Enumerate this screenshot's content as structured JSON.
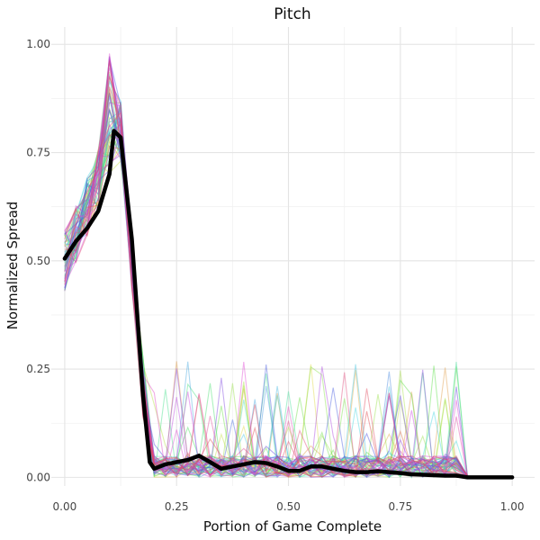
{
  "chart_data": {
    "type": "line",
    "title": "Pitch",
    "xlabel": "Portion of Game Complete",
    "ylabel": "Normalized Spread",
    "xlim": [
      -0.03,
      1.05
    ],
    "ylim": [
      -0.02,
      1.04
    ],
    "xticks": [
      0.0,
      0.25,
      0.5,
      0.75,
      1.0
    ],
    "xtick_labels": [
      "0.00",
      "0.25",
      "0.50",
      "0.75",
      "1.00"
    ],
    "yticks": [
      0.0,
      0.25,
      0.5,
      0.75,
      1.0
    ],
    "ytick_labels": [
      "0.00",
      "0.25",
      "0.50",
      "0.75",
      "1.00"
    ],
    "grid": true,
    "legend": "none",
    "individual_series": {
      "count": 60,
      "style": "thin semi-transparent rainbow lines (individual games)",
      "x": [
        0.0,
        0.025,
        0.05,
        0.075,
        0.1,
        0.125,
        0.15,
        0.175,
        0.2,
        0.225,
        0.25,
        0.275,
        0.3,
        0.325,
        0.35,
        0.375,
        0.4,
        0.425,
        0.45,
        0.475,
        0.5,
        0.525,
        0.55,
        0.575,
        0.6,
        0.625,
        0.65,
        0.675,
        0.7,
        0.725,
        0.75,
        0.775,
        0.8,
        0.825,
        0.85,
        0.875,
        0.9
      ]
    },
    "series": [
      {
        "color": "#000000",
        "x": [
          0.0,
          0.025,
          0.05,
          0.075,
          0.1,
          0.11,
          0.125,
          0.15,
          0.175,
          0.19,
          0.2,
          0.225,
          0.25,
          0.275,
          0.3,
          0.325,
          0.35,
          0.375,
          0.4,
          0.425,
          0.45,
          0.475,
          0.5,
          0.525,
          0.55,
          0.575,
          0.6,
          0.625,
          0.65,
          0.675,
          0.7,
          0.725,
          0.75,
          0.775,
          0.8,
          0.825,
          0.85,
          0.875,
          0.9,
          0.925,
          0.95,
          0.975,
          1.0
        ],
        "values": [
          0.505,
          0.545,
          0.575,
          0.615,
          0.7,
          0.8,
          0.785,
          0.55,
          0.19,
          0.035,
          0.02,
          0.03,
          0.035,
          0.04,
          0.05,
          0.035,
          0.02,
          0.025,
          0.03,
          0.035,
          0.033,
          0.025,
          0.015,
          0.015,
          0.025,
          0.025,
          0.02,
          0.015,
          0.012,
          0.012,
          0.014,
          0.012,
          0.01,
          0.007,
          0.006,
          0.005,
          0.004,
          0.004,
          0.0,
          0.0,
          0.0,
          0.0,
          0.0
        ]
      }
    ]
  }
}
